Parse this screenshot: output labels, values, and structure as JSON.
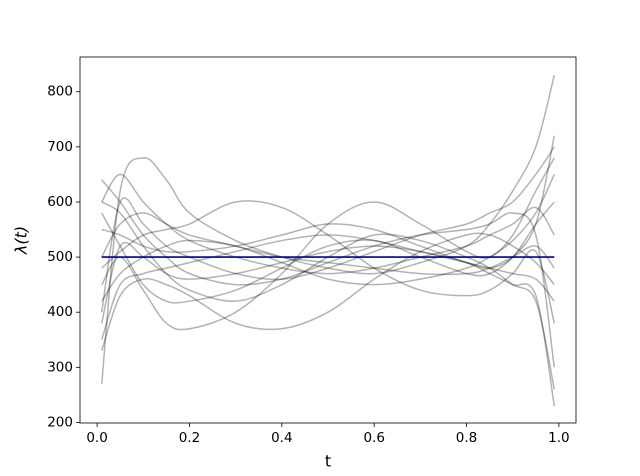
{
  "chart_data": {
    "type": "line",
    "xlabel": "t",
    "ylabel": "λ(t)",
    "xlim": [
      -0.037,
      1.037
    ],
    "ylim": [
      199,
      863
    ],
    "xticks": [
      {
        "value": 0,
        "label": "0.0"
      },
      0.2,
      0.4,
      0.6,
      0.8,
      {
        "value": 1,
        "label": "1.0"
      }
    ],
    "yticks": [
      200,
      300,
      400,
      500,
      600,
      700,
      800
    ],
    "grid": false,
    "alpha": 0.3,
    "x": [
      0.01,
      0.05,
      0.1,
      0.15,
      0.2,
      0.3,
      0.4,
      0.5,
      0.6,
      0.7,
      0.8,
      0.85,
      0.9,
      0.95,
      0.99
    ],
    "series": [
      {
        "color": "#000000",
        "values": [
          270,
          620,
          680,
          640,
          580,
          530,
          500,
          480,
          470,
          490,
          520,
          560,
          620,
          700,
          830
        ]
      },
      {
        "color": "#000000",
        "values": [
          400,
          600,
          560,
          520,
          500,
          470,
          460,
          480,
          510,
          540,
          560,
          580,
          600,
          650,
          700
        ]
      },
      {
        "color": "#000000",
        "values": [
          600,
          580,
          520,
          470,
          440,
          420,
          450,
          500,
          540,
          530,
          500,
          480,
          450,
          420,
          260
        ]
      },
      {
        "color": "#000000",
        "values": [
          350,
          450,
          470,
          480,
          490,
          510,
          530,
          540,
          530,
          510,
          490,
          480,
          470,
          460,
          420
        ]
      },
      {
        "color": "#000000",
        "values": [
          450,
          500,
          440,
          380,
          370,
          400,
          470,
          560,
          600,
          560,
          510,
          500,
          540,
          620,
          680
        ]
      },
      {
        "color": "#000000",
        "values": [
          500,
          560,
          580,
          560,
          540,
          520,
          500,
          490,
          480,
          470,
          470,
          480,
          500,
          520,
          480
        ]
      },
      {
        "color": "#000000",
        "values": [
          640,
          600,
          540,
          500,
          470,
          450,
          460,
          490,
          520,
          540,
          550,
          560,
          580,
          540,
          300
        ]
      },
      {
        "color": "#000000",
        "values": [
          380,
          520,
          500,
          470,
          460,
          470,
          490,
          510,
          520,
          510,
          490,
          470,
          450,
          430,
          230
        ]
      },
      {
        "color": "#000000",
        "values": [
          550,
          540,
          520,
          510,
          510,
          520,
          540,
          560,
          550,
          520,
          490,
          480,
          500,
          560,
          600
        ]
      },
      {
        "color": "#000000",
        "values": [
          420,
          470,
          500,
          520,
          530,
          520,
          490,
          460,
          450,
          460,
          480,
          500,
          530,
          580,
          650
        ]
      },
      {
        "color": "#000000",
        "values": [
          580,
          520,
          450,
          420,
          420,
          440,
          480,
          520,
          530,
          500,
          470,
          470,
          500,
          560,
          720
        ]
      },
      {
        "color": "#000000",
        "values": [
          480,
          510,
          540,
          550,
          560,
          600,
          590,
          540,
          480,
          440,
          430,
          440,
          470,
          510,
          380
        ]
      },
      {
        "color": "#000000",
        "values": [
          330,
          430,
          460,
          450,
          430,
          380,
          370,
          400,
          460,
          510,
          540,
          540,
          520,
          490,
          450
        ]
      },
      {
        "color": "#000000",
        "values": [
          600,
          650,
          600,
          560,
          530,
          500,
          480,
          470,
          480,
          500,
          520,
          540,
          560,
          590,
          540
        ]
      },
      {
        "color": "#00008b",
        "opaque": true,
        "values": [
          500,
          500,
          500,
          500,
          500,
          500,
          500,
          500,
          500,
          500,
          500,
          500,
          500,
          500,
          500
        ]
      }
    ]
  }
}
